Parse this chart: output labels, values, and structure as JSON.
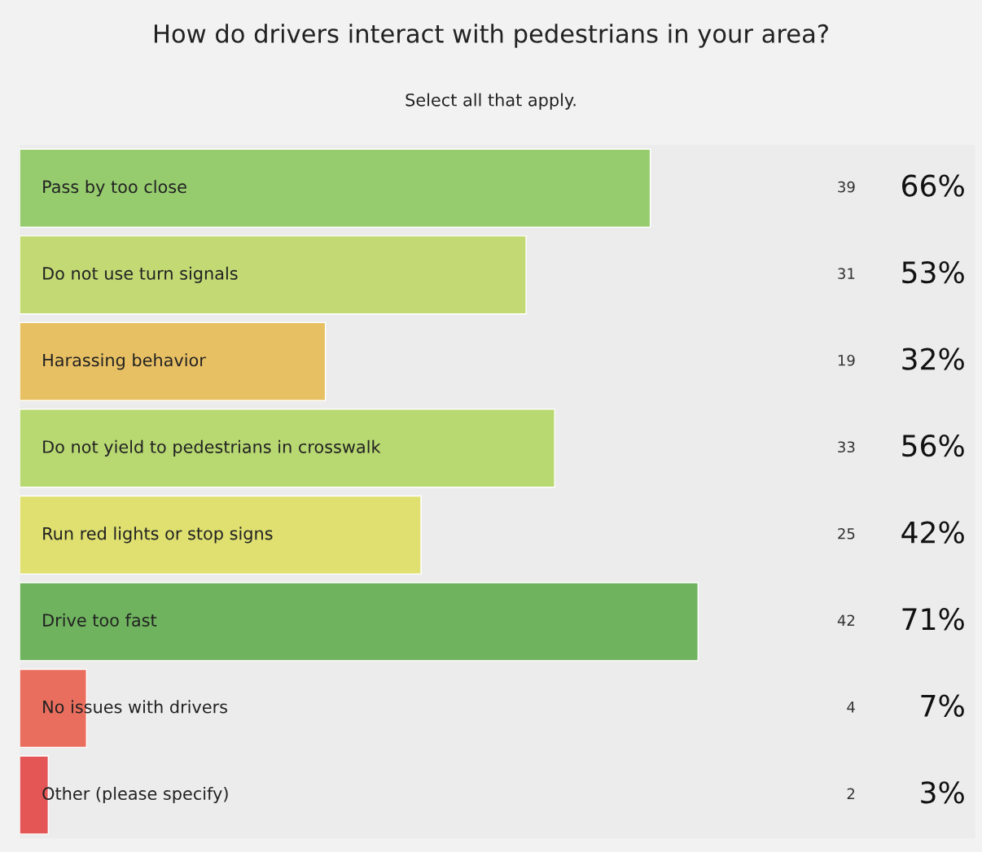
{
  "chart_data": {
    "type": "bar",
    "orientation": "horizontal",
    "title": "How do drivers interact with pedestrians in your area?",
    "subtitle": "Select all that apply.",
    "categories": [
      "Pass by too close",
      "Do not use turn signals",
      "Harassing behavior",
      "Do not yield to pedestrians in crosswalk",
      "Run red lights or stop signs",
      "Drive too fast",
      "No issues with drivers",
      "Other (please specify)"
    ],
    "values": [
      66,
      53,
      32,
      56,
      42,
      71,
      7,
      3
    ],
    "value_labels": [
      "66%",
      "53%",
      "32%",
      "56%",
      "42%",
      "71%",
      "7%",
      "3%"
    ],
    "colors": [
      "#96cc6e",
      "#c2d974",
      "#e8c064",
      "#b8d872",
      "#dfe070",
      "#6fb35e",
      "#ea6e5e",
      "#e45656"
    ],
    "annotations": [
      "39",
      "31",
      "19",
      "33",
      "25",
      "42",
      "4",
      "2"
    ],
    "xlim": [
      0,
      100
    ]
  }
}
